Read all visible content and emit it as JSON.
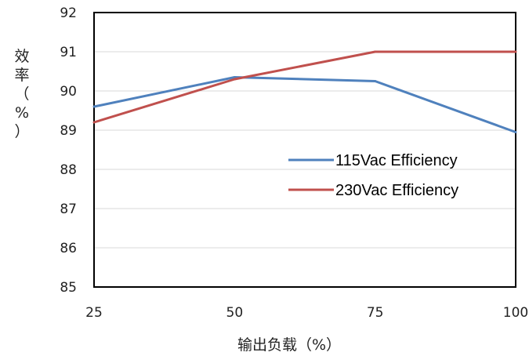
{
  "chart_data": {
    "type": "line",
    "x": [
      25,
      50,
      75,
      100
    ],
    "xlabel": "输出负载（%）",
    "ylabel": "效率（%）",
    "ylim": [
      85,
      92
    ],
    "xlim": [
      25,
      100
    ],
    "y_ticks": [
      85,
      86,
      87,
      88,
      89,
      90,
      91,
      92
    ],
    "x_ticks": [
      25,
      50,
      75,
      100
    ],
    "grid": "horizontal",
    "legend_position": "center-right",
    "series": [
      {
        "name": "115Vac Efficiency",
        "color": "#4f81bd",
        "values": [
          89.6,
          90.35,
          90.25,
          88.95
        ]
      },
      {
        "name": "230Vac Efficiency",
        "color": "#c0504d",
        "values": [
          89.2,
          90.3,
          91.0,
          91.0
        ]
      }
    ]
  }
}
